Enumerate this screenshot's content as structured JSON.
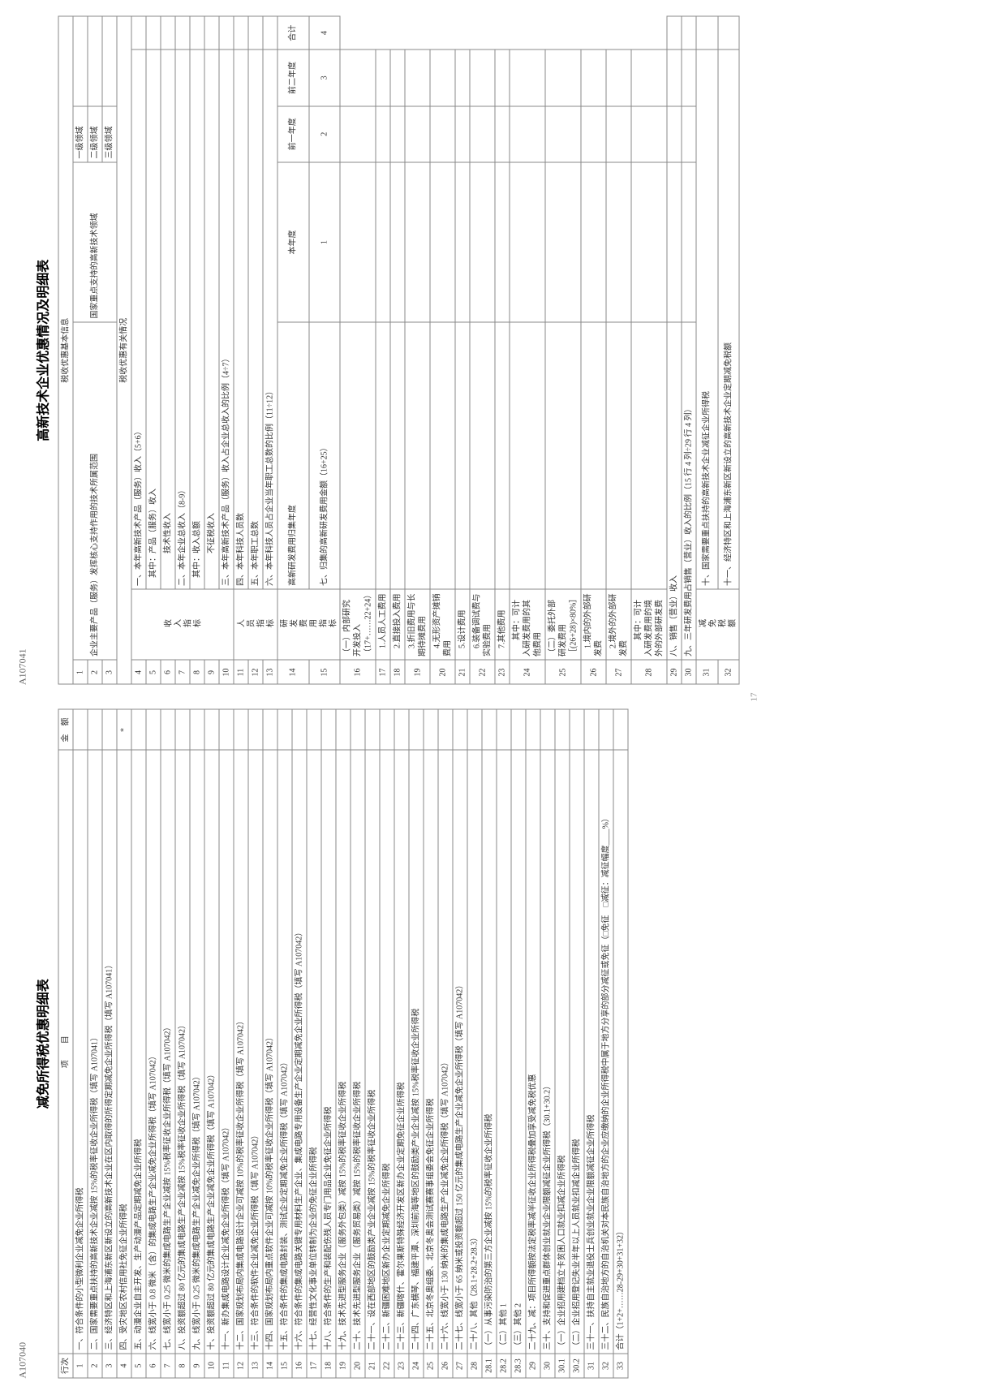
{
  "pageNumber": "17",
  "left": {
    "code": "A107040",
    "title": "减免所得税优惠明细表",
    "headers": {
      "rownum": "行次",
      "item": "项　　目",
      "amount": "金　额"
    },
    "rows": [
      {
        "n": "1",
        "t": "一、符合条件的小型微利企业减免企业所得税"
      },
      {
        "n": "2",
        "t": "二、国家需要重点扶持的高新技术企业减按 15%的税率征收企业所得税（填写 A107041）"
      },
      {
        "n": "3",
        "t": "三、经济特区和上海浦东新区新设立的高新技术企业在区内取得的所得定期减免企业所得税（填写 A107041）"
      },
      {
        "n": "4",
        "t": "四、受灾地区农村信用社免征企业所得税",
        "star": "*"
      },
      {
        "n": "5",
        "t": "五、动漫企业自主开发、生产动漫产品定期减免企业所得税"
      },
      {
        "n": "6",
        "t": "六、线宽小于 0.8 微米（含）的集成电路生产企业减免企业所得税（填写 A107042）"
      },
      {
        "n": "7",
        "t": "七、线宽小于 0.25 微米的集成电路生产企业减按 15%税率征收企业所得税（填写 A107042）"
      },
      {
        "n": "8",
        "t": "八、投资额超过 80 亿元的集成电路生产企业减按 15%税率征收企业所得税（填写 A107042）"
      },
      {
        "n": "9",
        "t": "九、线宽小于 0.25 微米的集成电路生产企业减免企业所得税（填写 A107042）"
      },
      {
        "n": "10",
        "t": "十、投资额超过 80 亿元的集成电路生产企业减免企业所得税（填写 A107042）"
      },
      {
        "n": "11",
        "t": "十一、新办集成电路设计企业减免企业所得税（填写 A107042）"
      },
      {
        "n": "12",
        "t": "十二、国家规划布局内集成电路设计企业可减按 10%的税率征收企业所得税（填写 A107042）"
      },
      {
        "n": "13",
        "t": "十三、符合条件的软件企业减免企业所得税（填写 A107042）"
      },
      {
        "n": "14",
        "t": "十四、国家规划布局内重点软件企业可减按 10%的税率征收企业所得税（填写 A107042）"
      },
      {
        "n": "15",
        "t": "十五、符合条件的集成电路封装、测试企业定期减免企业所得税（填写 A107042）"
      },
      {
        "n": "16",
        "t": "十六、符合条件的集成电路关键专用材料生产企业、集成电路专用设备生产企业定期减免企业所得税（填写 A107042）"
      },
      {
        "n": "17",
        "t": "十七、经营性文化事业单位转制为企业的免征企业所得税"
      },
      {
        "n": "18",
        "t": "十八、符合条件的生产和装配伤残人员专门用品企业免征企业所得税"
      },
      {
        "n": "19",
        "t": "十九、技术先进型服务企业（服务外包类）减按 15%的税率征收企业所得税"
      },
      {
        "n": "20",
        "t": "二十、技术先进型服务企业（服务贸易类）减按 15%的税率征收企业所得税"
      },
      {
        "n": "21",
        "t": "二十一、设在西部地区的鼓励类产业企业减按 15%的税率征收企业所得税"
      },
      {
        "n": "22",
        "t": "二十二、新疆困难地区新办企业定期减免企业所得税"
      },
      {
        "n": "23",
        "t": "二十三、新疆喀什、霍尔果斯特殊经济开发区新办企业定期免征企业所得税"
      },
      {
        "n": "24",
        "t": "二十四、广东横琴、福建平潭、深圳前海等地区的鼓励类产业企业减按 15%税率征收企业所得税"
      },
      {
        "n": "25",
        "t": "二十五、北京冬奥组委、北京冬奥会测试赛赛事组委会免征企业所得税"
      },
      {
        "n": "26",
        "t": "二十六、线宽小于 130 纳米的集成电路生产企业减免企业所得税（填写 A107042）"
      },
      {
        "n": "27",
        "t": "二十七、线宽小于 65 纳米或投资额超过 150 亿元的集成电路生产企业减免企业所得税（填写 A107042）"
      },
      {
        "n": "28",
        "t": "二十八、其他（28.1+28.2+28.3）"
      },
      {
        "n": "28.1",
        "t": "（一）从事污染防治的第三方企业减按 15%的税率征收企业所得税"
      },
      {
        "n": "28.2",
        "t": "（二）其他 1"
      },
      {
        "n": "28.3",
        "t": "（三）其他 2"
      },
      {
        "n": "29",
        "t": "二十九、减：项目所得额按法定税率减半征收企业所得税叠加享受减免税优惠"
      },
      {
        "n": "30",
        "t": "三十、支持和促进重点群体创业就业企业限额减征企业所得税（30.1+30.2）"
      },
      {
        "n": "30.1",
        "t": "（一）企业招用建档立卡贫困人口就业扣减企业所得税"
      },
      {
        "n": "30.2",
        "t": "（二）企业招用登记失业半年以上人员就业扣减企业所得税"
      },
      {
        "n": "31",
        "t": "三十一、扶持自主就业退役士兵创业就业企业限额减征企业所得税"
      },
      {
        "n": "32",
        "t": "三十二、民族自治地方的自治机关对本民族自治地方的企业应缴纳的企业所得税中属于地方分享的部分减征或免征（□免征　□减征：减征幅度____%）"
      },
      {
        "n": "33",
        "t": "合计（1+2+……28-29+30+31+32）"
      }
    ]
  },
  "right": {
    "code": "A107041",
    "title": "高新技术企业优惠情况及明细表",
    "sectionBasic": "税收优惠基本信息",
    "sectionRelated": "税收优惠有关情况",
    "basic": {
      "r1label": "企业主要产品（服务）发挥核心支持作用的技术所属范围",
      "r1c1": "国家重点支持的高新技术领域",
      "lv1": "一级领域",
      "lv2": "二级领域",
      "lv3": "三级领域"
    },
    "cats": {
      "income": "收入指标",
      "person": "人员指标",
      "rd": "研发费用指标",
      "exempt": "减免税额"
    },
    "rows": [
      {
        "n": "4",
        "t": "一、本年高新技术产品（服务）收入（5+6）"
      },
      {
        "n": "5",
        "t": "　其中：产品（服务）收入"
      },
      {
        "n": "6",
        "t": "　　　　技术性收入"
      },
      {
        "n": "7",
        "t": "二、本年企业总收入（8-9）"
      },
      {
        "n": "8",
        "t": "　其中：收入总额"
      },
      {
        "n": "9",
        "t": "　　　　不征税收入"
      },
      {
        "n": "10",
        "t": "三、本年高新技术产品（服务）收入占企业总收入的比例（4÷7）"
      },
      {
        "n": "11",
        "t": "四、本年科技人员数"
      },
      {
        "n": "12",
        "t": "五、本年职工总数"
      },
      {
        "n": "13",
        "t": "六、本年科技人员占企业当年职工总数的比例（11÷12）"
      }
    ],
    "row14": {
      "n": "14",
      "label": "高新研发费用归集年度",
      "c1": "本年度",
      "c2": "前一年度",
      "c3": "前二年度",
      "c4": "合计",
      "v1": "1",
      "v2": "2",
      "v3": "3",
      "v4": "4"
    },
    "rdrows": [
      {
        "n": "15",
        "t": "七、归集的高新研发费用金额（16+25）"
      },
      {
        "n": "16",
        "t": "（一）内部研究开发投入（17+……22+24）"
      },
      {
        "n": "17",
        "t": "　1.人员人工费用"
      },
      {
        "n": "18",
        "t": "　2.直接投入费用"
      },
      {
        "n": "19",
        "t": "　3.折旧费用与长期待摊费用"
      },
      {
        "n": "20",
        "t": "　4.无形资产摊销费用"
      },
      {
        "n": "21",
        "t": "　5.设计费用"
      },
      {
        "n": "22",
        "t": "　6.装备调试费与实验费用"
      },
      {
        "n": "23",
        "t": "　7.其他费用"
      },
      {
        "n": "24",
        "t": "　　其中：可计入研发费用的其他费用"
      },
      {
        "n": "25",
        "t": "（二）委托外部研发费用［(26+28)×80%］"
      },
      {
        "n": "26",
        "t": "　1.境内的外部研发费"
      },
      {
        "n": "27",
        "t": "　2.境外的外部研发费"
      },
      {
        "n": "28",
        "t": "　　其中：可计入研发费用的境外的外部研发费"
      },
      {
        "n": "29",
        "t": "八、销售（营业）收入"
      },
      {
        "n": "30",
        "t": "九、三年研发费用占销售（营业）收入的比例（15 行 4 列÷29 行 4 列）"
      }
    ],
    "exrows": [
      {
        "n": "31",
        "t": "十、国家需要重点扶持的高新技术企业减征企业所得税"
      },
      {
        "n": "32",
        "t": "十一、经济特区和上海浦东新区新设立的高新技术企业定期减免税额"
      }
    ]
  }
}
